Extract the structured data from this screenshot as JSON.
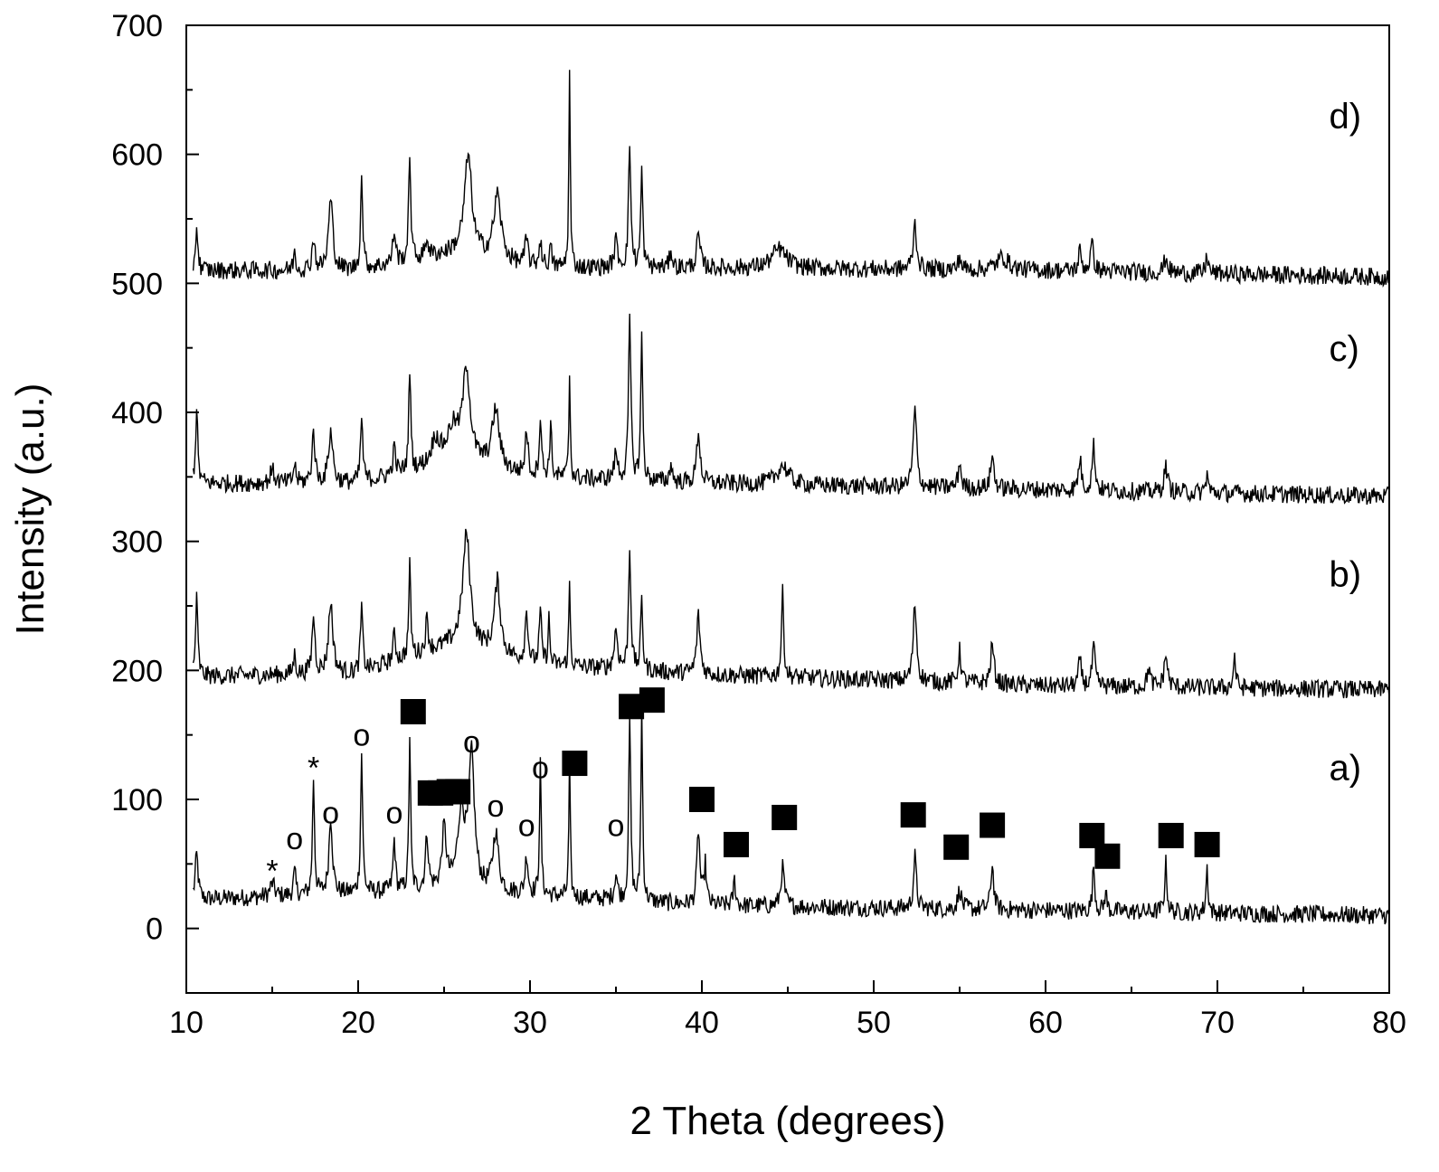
{
  "chart_data": {
    "type": "line",
    "xlabel": "2 Theta (degrees)",
    "ylabel": "Intensity (a.u.)",
    "xlim": [
      10,
      80
    ],
    "ylim": [
      -50,
      700
    ],
    "xticks": [
      10,
      20,
      30,
      40,
      50,
      60,
      70,
      80
    ],
    "yticks": [
      0,
      100,
      200,
      300,
      400,
      500,
      600,
      700
    ],
    "grid": false,
    "series": [
      {
        "name": "a)",
        "baseline": [
          [
            10,
            22
          ],
          [
            25,
            30
          ],
          [
            40,
            18
          ],
          [
            60,
            14
          ],
          [
            80,
            10
          ]
        ],
        "peaks": [
          [
            10.6,
            35,
            0.1
          ],
          [
            15,
            10,
            0.15
          ],
          [
            16.3,
            18,
            0.08
          ],
          [
            17.4,
            90,
            0.07
          ],
          [
            18.4,
            60,
            0.12
          ],
          [
            20.2,
            108,
            0.07
          ],
          [
            22.1,
            40,
            0.08
          ],
          [
            23,
            120,
            0.06
          ],
          [
            24,
            42,
            0.1
          ],
          [
            25,
            45,
            0.15
          ],
          [
            26,
            60,
            0.25
          ],
          [
            26.6,
            100,
            0.2
          ],
          [
            28,
            45,
            0.2
          ],
          [
            29.8,
            30,
            0.1
          ],
          [
            30.6,
            100,
            0.06
          ],
          [
            32.3,
            105,
            0.05
          ],
          [
            35,
            20,
            0.1
          ],
          [
            35.8,
            140,
            0.07
          ],
          [
            36.5,
            150,
            0.06
          ],
          [
            39.8,
            58,
            0.1
          ],
          [
            40.2,
            30,
            0.08
          ],
          [
            41.9,
            20,
            0.08
          ],
          [
            44.7,
            30,
            0.12
          ],
          [
            52.4,
            40,
            0.1
          ],
          [
            55,
            15,
            0.12
          ],
          [
            56.9,
            35,
            0.1
          ],
          [
            62.8,
            35,
            0.08
          ],
          [
            63.5,
            15,
            0.08
          ],
          [
            67,
            38,
            0.08
          ],
          [
            69.4,
            35,
            0.07
          ]
        ],
        "markers": [
          {
            "symbol": "*",
            "x": 15,
            "y": 45
          },
          {
            "symbol": "o",
            "x": 16.3,
            "y": 70
          },
          {
            "symbol": "*",
            "x": 17.4,
            "y": 125
          },
          {
            "symbol": "o",
            "x": 18.4,
            "y": 90
          },
          {
            "symbol": "o",
            "x": 20.2,
            "y": 150
          },
          {
            "symbol": "o",
            "x": 22.1,
            "y": 90
          },
          {
            "symbol": "square",
            "x": 23.2,
            "y": 168
          },
          {
            "symbol": "square",
            "x": 24.2,
            "y": 105
          },
          {
            "symbol": "square",
            "x": 24.8,
            "y": 105
          },
          {
            "symbol": "square",
            "x": 25.3,
            "y": 106
          },
          {
            "symbol": "square",
            "x": 25.8,
            "y": 106
          },
          {
            "symbol": "o",
            "x": 26.6,
            "y": 145
          },
          {
            "symbol": "o",
            "x": 28,
            "y": 95
          },
          {
            "symbol": "o",
            "x": 29.8,
            "y": 80
          },
          {
            "symbol": "o",
            "x": 30.6,
            "y": 125
          },
          {
            "symbol": "square",
            "x": 32.6,
            "y": 128
          },
          {
            "symbol": "o",
            "x": 35,
            "y": 80
          },
          {
            "symbol": "square",
            "x": 35.9,
            "y": 172
          },
          {
            "symbol": "square",
            "x": 37.1,
            "y": 177
          },
          {
            "symbol": "square",
            "x": 40,
            "y": 100
          },
          {
            "symbol": "square",
            "x": 42,
            "y": 65
          },
          {
            "symbol": "square",
            "x": 44.8,
            "y": 86
          },
          {
            "symbol": "square",
            "x": 52.3,
            "y": 88
          },
          {
            "symbol": "square",
            "x": 54.8,
            "y": 63
          },
          {
            "symbol": "square",
            "x": 56.9,
            "y": 80
          },
          {
            "symbol": "square",
            "x": 62.7,
            "y": 72
          },
          {
            "symbol": "square",
            "x": 63.6,
            "y": 56
          },
          {
            "symbol": "square",
            "x": 67.3,
            "y": 72
          },
          {
            "symbol": "square",
            "x": 69.4,
            "y": 65
          }
        ]
      },
      {
        "name": "b)",
        "baseline": [
          [
            10,
            195
          ],
          [
            20,
            198
          ],
          [
            26,
            222
          ],
          [
            30,
            205
          ],
          [
            40,
            197
          ],
          [
            60,
            188
          ],
          [
            80,
            185
          ]
        ],
        "peaks": [
          [
            10.6,
            60,
            0.08
          ],
          [
            16.3,
            15,
            0.08
          ],
          [
            17.4,
            45,
            0.1
          ],
          [
            18.4,
            55,
            0.15
          ],
          [
            20.2,
            50,
            0.08
          ],
          [
            22.1,
            20,
            0.1
          ],
          [
            23,
            70,
            0.07
          ],
          [
            24,
            25,
            0.1
          ],
          [
            26.3,
            85,
            0.25
          ],
          [
            28.1,
            55,
            0.2
          ],
          [
            29.8,
            40,
            0.1
          ],
          [
            30.6,
            40,
            0.08
          ],
          [
            31.1,
            35,
            0.06
          ],
          [
            32.3,
            65,
            0.05
          ],
          [
            35,
            30,
            0.12
          ],
          [
            35.8,
            95,
            0.08
          ],
          [
            36.5,
            55,
            0.07
          ],
          [
            39.8,
            45,
            0.12
          ],
          [
            44.7,
            65,
            0.08
          ],
          [
            52.4,
            60,
            0.12
          ],
          [
            55,
            25,
            0.1
          ],
          [
            56.9,
            30,
            0.12
          ],
          [
            62,
            20,
            0.1
          ],
          [
            62.8,
            30,
            0.1
          ],
          [
            66,
            15,
            0.1
          ],
          [
            67,
            25,
            0.12
          ],
          [
            71,
            25,
            0.08
          ]
        ]
      },
      {
        "name": "c)",
        "baseline": [
          [
            10,
            345
          ],
          [
            20,
            345
          ],
          [
            26,
            362
          ],
          [
            30,
            350
          ],
          [
            40,
            345
          ],
          [
            60,
            340
          ],
          [
            80,
            335
          ]
        ],
        "peaks": [
          [
            10.6,
            55,
            0.08
          ],
          [
            15,
            10,
            0.15
          ],
          [
            16.3,
            15,
            0.08
          ],
          [
            17.4,
            40,
            0.1
          ],
          [
            18.4,
            40,
            0.15
          ],
          [
            20.2,
            50,
            0.08
          ],
          [
            22.1,
            20,
            0.1
          ],
          [
            23,
            80,
            0.07
          ],
          [
            24.5,
            20,
            0.3
          ],
          [
            25.5,
            25,
            0.4
          ],
          [
            26.3,
            70,
            0.25
          ],
          [
            28,
            45,
            0.25
          ],
          [
            29.8,
            35,
            0.1
          ],
          [
            30.6,
            45,
            0.08
          ],
          [
            31.2,
            40,
            0.07
          ],
          [
            32.3,
            80,
            0.05
          ],
          [
            35,
            20,
            0.12
          ],
          [
            35.8,
            125,
            0.08
          ],
          [
            36.5,
            110,
            0.07
          ],
          [
            38.2,
            15,
            0.08
          ],
          [
            39.8,
            40,
            0.12
          ],
          [
            44.7,
            15,
            0.4
          ],
          [
            52.4,
            60,
            0.12
          ],
          [
            55,
            20,
            0.1
          ],
          [
            56.9,
            25,
            0.12
          ],
          [
            62,
            25,
            0.1
          ],
          [
            62.8,
            35,
            0.1
          ],
          [
            67,
            20,
            0.12
          ],
          [
            69.4,
            15,
            0.08
          ]
        ]
      },
      {
        "name": "d)",
        "baseline": [
          [
            10,
            510
          ],
          [
            20,
            510
          ],
          [
            26,
            525
          ],
          [
            30,
            512
          ],
          [
            40,
            512
          ],
          [
            60,
            510
          ],
          [
            80,
            505
          ]
        ],
        "peaks": [
          [
            10.6,
            35,
            0.08
          ],
          [
            16.3,
            15,
            0.08
          ],
          [
            17.4,
            25,
            0.1
          ],
          [
            18.4,
            55,
            0.15
          ],
          [
            20.2,
            70,
            0.08
          ],
          [
            22.1,
            25,
            0.1
          ],
          [
            23,
            85,
            0.07
          ],
          [
            24,
            15,
            0.1
          ],
          [
            26.4,
            75,
            0.25
          ],
          [
            28.1,
            50,
            0.25
          ],
          [
            29.8,
            20,
            0.12
          ],
          [
            30.6,
            20,
            0.1
          ],
          [
            31.2,
            15,
            0.08
          ],
          [
            32.3,
            150,
            0.05
          ],
          [
            35,
            20,
            0.12
          ],
          [
            35.8,
            95,
            0.08
          ],
          [
            36.5,
            75,
            0.07
          ],
          [
            38.2,
            15,
            0.08
          ],
          [
            39.8,
            25,
            0.12
          ],
          [
            44.5,
            15,
            0.5
          ],
          [
            52.4,
            35,
            0.12
          ],
          [
            55,
            10,
            0.1
          ],
          [
            57.5,
            10,
            0.4
          ],
          [
            62,
            15,
            0.1
          ],
          [
            62.7,
            20,
            0.12
          ],
          [
            67,
            12,
            0.12
          ],
          [
            69.4,
            15,
            0.08
          ]
        ]
      }
    ],
    "series_labels": [
      {
        "text": "d)",
        "x": 76.5,
        "y": 620
      },
      {
        "text": "c)",
        "x": 76.5,
        "y": 440
      },
      {
        "text": "b)",
        "x": 76.5,
        "y": 265
      },
      {
        "text": "a)",
        "x": 76.5,
        "y": 115
      }
    ]
  }
}
